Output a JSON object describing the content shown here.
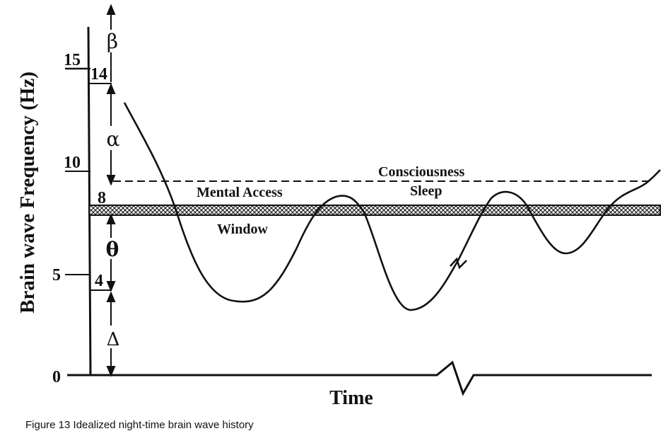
{
  "figure": {
    "caption": "Figure 13  Idealized night-time brain wave history",
    "y_axis_label": "Brain wave Frequency (Hz)",
    "x_axis_label": "Time",
    "y_ticks": [
      "15",
      "10",
      "5",
      "0"
    ],
    "band_boundaries": [
      "14",
      "8",
      "4"
    ],
    "bands": [
      {
        "symbol": "β",
        "range": "above 14 Hz"
      },
      {
        "symbol": "α",
        "range": "8–14 Hz"
      },
      {
        "symbol": "θ",
        "range": "4–8 Hz"
      },
      {
        "symbol": "Δ",
        "range": "0–4 Hz"
      }
    ],
    "labels": {
      "consciousness": "Consciousness",
      "sleep": "Sleep",
      "mental_access": "Mental Access",
      "window": "Window"
    },
    "colors": {
      "ink": "#111111",
      "background": "#ffffff"
    }
  }
}
